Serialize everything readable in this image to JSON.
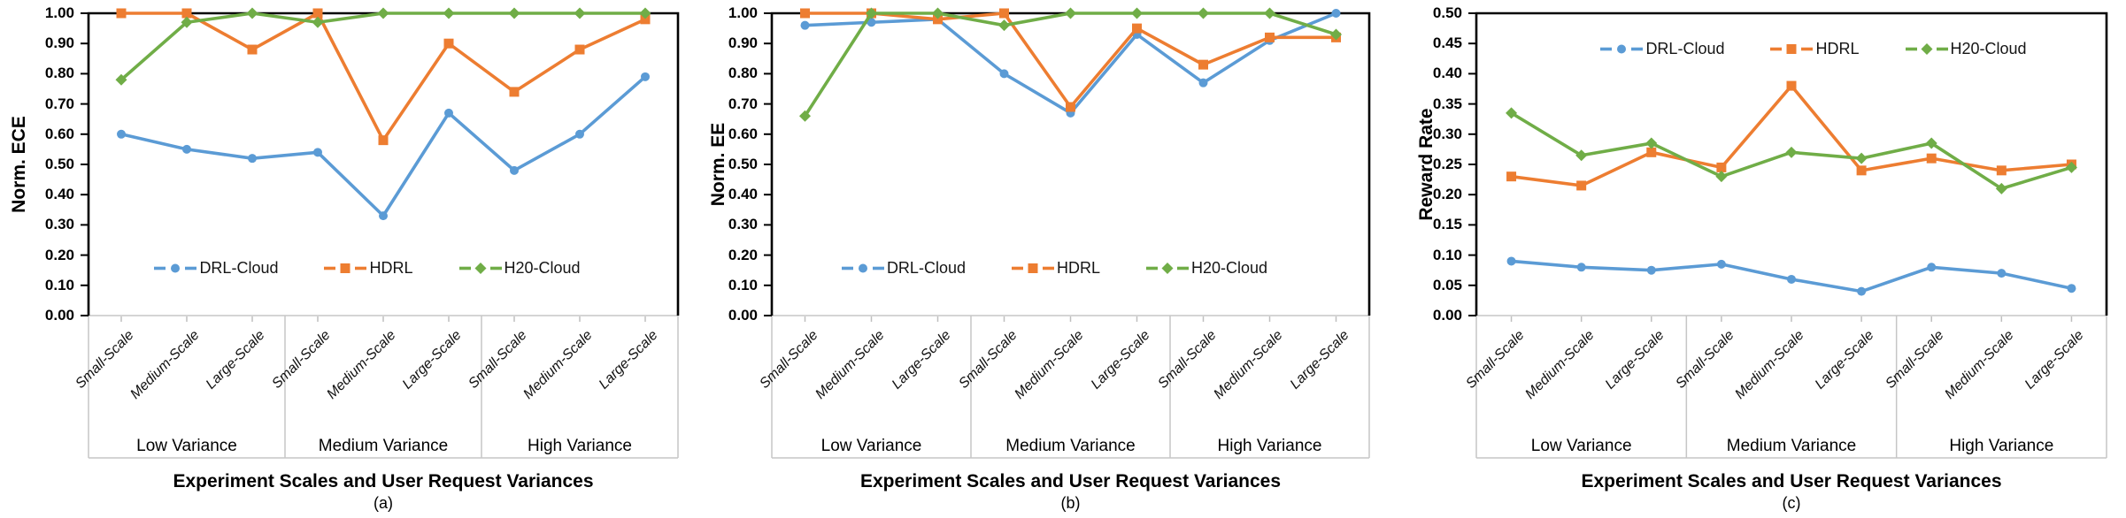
{
  "figure_title": "",
  "colors": {
    "drl_cloud": "#5B9BD5",
    "hdrl": "#ED7D31",
    "h2o_cloud": "#70AD47",
    "axis_black": "#000000",
    "category_grid_gray": "#C6C6C6"
  },
  "chart_data": [
    {
      "type": "line",
      "letter": "(a)",
      "ylabel": "Norm. ECE",
      "xlabel": "Experiment Scales and User Request Variances",
      "ylim": [
        0.0,
        1.0
      ],
      "ytick_step": 0.1,
      "grid": false,
      "legend_position": "inside-lower-middle",
      "categories": [
        "Small-Scale",
        "Medium-Scale",
        "Large-Scale",
        "Small-Scale",
        "Medium-Scale",
        "Large-Scale",
        "Small-Scale",
        "Medium-Scale",
        "Large-Scale"
      ],
      "category_groups": [
        "Low Variance",
        "Medium Variance",
        "High Variance"
      ],
      "series": [
        {
          "name": "DRL-Cloud",
          "color": "#5B9BD5",
          "marker": "circle",
          "values": [
            0.6,
            0.55,
            0.52,
            0.54,
            0.33,
            0.67,
            0.48,
            0.6,
            0.79
          ]
        },
        {
          "name": "HDRL",
          "color": "#ED7D31",
          "marker": "square",
          "values": [
            1.0,
            1.0,
            0.88,
            1.0,
            0.58,
            0.9,
            0.74,
            0.88,
            0.98
          ]
        },
        {
          "name": "H20-Cloud",
          "color": "#70AD47",
          "marker": "diamond",
          "values": [
            0.78,
            0.97,
            1.0,
            0.97,
            1.0,
            1.0,
            1.0,
            1.0,
            1.0
          ]
        }
      ]
    },
    {
      "type": "line",
      "letter": "(b)",
      "ylabel": "Norm. EE",
      "xlabel": "Experiment Scales and User Request Variances",
      "ylim": [
        0.0,
        1.0
      ],
      "ytick_step": 0.1,
      "grid": false,
      "legend_position": "inside-lower-middle",
      "categories": [
        "Small-Scale",
        "Medium-Scale",
        "Large-Scale",
        "Small-Scale",
        "Medium-Scale",
        "Large-Scale",
        "Small-Scale",
        "Medium-Scale",
        "Large-Scale"
      ],
      "category_groups": [
        "Low Variance",
        "Medium Variance",
        "High Variance"
      ],
      "series": [
        {
          "name": "DRL-Cloud",
          "color": "#5B9BD5",
          "marker": "circle",
          "values": [
            0.96,
            0.97,
            0.98,
            0.8,
            0.67,
            0.93,
            0.77,
            0.91,
            1.0
          ]
        },
        {
          "name": "HDRL",
          "color": "#ED7D31",
          "marker": "square",
          "values": [
            1.0,
            1.0,
            0.98,
            1.0,
            0.69,
            0.95,
            0.83,
            0.92,
            0.92
          ]
        },
        {
          "name": "H20-Cloud",
          "color": "#70AD47",
          "marker": "diamond",
          "values": [
            0.66,
            1.0,
            1.0,
            0.96,
            1.0,
            1.0,
            1.0,
            1.0,
            0.93
          ]
        }
      ]
    },
    {
      "type": "line",
      "letter": "(c)",
      "ylabel": "Reward Rate",
      "xlabel": "Experiment Scales and User Request Variances",
      "ylim": [
        0.0,
        0.5
      ],
      "ytick_step": 0.05,
      "grid": false,
      "legend_position": "inside-upper-middle",
      "categories": [
        "Small-Scale",
        "Medium-Scale",
        "Large-Scale",
        "Small-Scale",
        "Medium-Scale",
        "Large-Scale",
        "Small-Scale",
        "Medium-Scale",
        "Large-Scale"
      ],
      "category_groups": [
        "Low Variance",
        "Medium Variance",
        "High Variance"
      ],
      "series": [
        {
          "name": "DRL-Cloud",
          "color": "#5B9BD5",
          "marker": "circle",
          "values": [
            0.09,
            0.08,
            0.075,
            0.085,
            0.06,
            0.04,
            0.08,
            0.07,
            0.045
          ]
        },
        {
          "name": "HDRL",
          "color": "#ED7D31",
          "marker": "square",
          "values": [
            0.23,
            0.215,
            0.27,
            0.245,
            0.38,
            0.24,
            0.26,
            0.24,
            0.25
          ]
        },
        {
          "name": "H20-Cloud",
          "color": "#70AD47",
          "marker": "diamond",
          "values": [
            0.335,
            0.265,
            0.285,
            0.23,
            0.27,
            0.26,
            0.285,
            0.21,
            0.245
          ]
        }
      ]
    }
  ]
}
